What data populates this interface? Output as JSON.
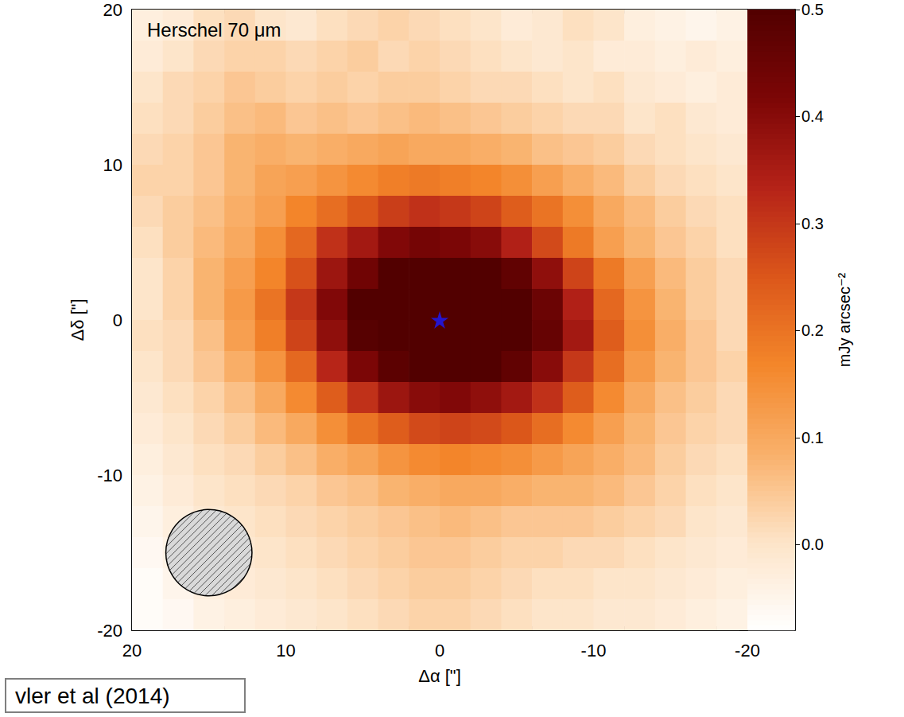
{
  "chart_data": {
    "type": "heatmap",
    "title": "Herschel 70 μm",
    "x_label": "Δα [\"]",
    "y_label": "Δδ [\"]",
    "x": [
      19,
      17,
      15,
      13,
      11,
      9,
      7,
      5,
      3,
      1,
      -1,
      -3,
      -5,
      -7,
      -9,
      -11,
      -13,
      -15,
      -17,
      -19
    ],
    "y": [
      19,
      17,
      15,
      13,
      11,
      9,
      7,
      5,
      3,
      1,
      -1,
      -3,
      -5,
      -7,
      -9,
      -11,
      -13,
      -15,
      -17,
      -19
    ],
    "cells": [
      [
        -0.03,
        -0.02,
        0.01,
        0.02,
        0.0,
        -0.01,
        0.01,
        0.02,
        0.03,
        0.02,
        0.01,
        0.0,
        -0.02,
        -0.01,
        0.01,
        0.0,
        -0.03,
        -0.04,
        -0.05,
        -0.04
      ],
      [
        -0.02,
        0.0,
        0.02,
        0.03,
        0.03,
        0.02,
        0.03,
        0.04,
        0.02,
        0.03,
        0.02,
        0.01,
        0.0,
        -0.01,
        0.0,
        -0.02,
        -0.02,
        -0.03,
        -0.02,
        -0.03
      ],
      [
        0.0,
        0.02,
        0.03,
        0.05,
        0.04,
        0.03,
        0.04,
        0.03,
        0.04,
        0.04,
        0.03,
        0.02,
        0.02,
        0.01,
        0.0,
        0.01,
        -0.01,
        -0.02,
        -0.03,
        -0.02
      ],
      [
        0.01,
        0.02,
        0.04,
        0.06,
        0.07,
        0.05,
        0.06,
        0.05,
        0.06,
        0.07,
        0.06,
        0.05,
        0.04,
        0.03,
        0.02,
        0.02,
        0.0,
        0.01,
        -0.01,
        -0.02
      ],
      [
        0.02,
        0.03,
        0.05,
        0.08,
        0.09,
        0.08,
        0.09,
        0.1,
        0.11,
        0.1,
        0.1,
        0.09,
        0.08,
        0.06,
        0.05,
        0.04,
        0.02,
        0.01,
        0.0,
        -0.01
      ],
      [
        0.03,
        0.03,
        0.05,
        0.08,
        0.11,
        0.12,
        0.14,
        0.16,
        0.18,
        0.19,
        0.18,
        0.17,
        0.15,
        0.12,
        0.09,
        0.07,
        0.04,
        0.02,
        0.01,
        0.0
      ],
      [
        0.02,
        0.04,
        0.06,
        0.09,
        0.12,
        0.17,
        0.21,
        0.25,
        0.29,
        0.31,
        0.3,
        0.28,
        0.24,
        0.2,
        0.15,
        0.1,
        0.07,
        0.04,
        0.02,
        0.01
      ],
      [
        0.01,
        0.04,
        0.07,
        0.1,
        0.15,
        0.22,
        0.31,
        0.36,
        0.41,
        0.43,
        0.42,
        0.4,
        0.34,
        0.27,
        0.19,
        0.12,
        0.08,
        0.05,
        0.03,
        0.01
      ],
      [
        0.0,
        0.03,
        0.08,
        0.12,
        0.17,
        0.26,
        0.37,
        0.44,
        0.5,
        0.53,
        0.54,
        0.52,
        0.47,
        0.39,
        0.28,
        0.19,
        0.12,
        0.07,
        0.04,
        0.02
      ],
      [
        0.0,
        0.03,
        0.08,
        0.13,
        0.2,
        0.3,
        0.41,
        0.5,
        0.56,
        0.59,
        0.6,
        0.58,
        0.53,
        0.45,
        0.34,
        0.22,
        0.14,
        0.08,
        0.04,
        0.02
      ],
      [
        0.01,
        0.02,
        0.06,
        0.12,
        0.18,
        0.28,
        0.39,
        0.49,
        0.55,
        0.58,
        0.59,
        0.58,
        0.54,
        0.46,
        0.36,
        0.24,
        0.15,
        0.09,
        0.05,
        0.02
      ],
      [
        0.0,
        0.02,
        0.05,
        0.09,
        0.14,
        0.22,
        0.33,
        0.42,
        0.48,
        0.51,
        0.52,
        0.5,
        0.47,
        0.4,
        0.3,
        0.21,
        0.13,
        0.08,
        0.05,
        0.03
      ],
      [
        -0.01,
        0.01,
        0.03,
        0.06,
        0.1,
        0.16,
        0.24,
        0.31,
        0.37,
        0.4,
        0.41,
        0.39,
        0.36,
        0.31,
        0.24,
        0.16,
        0.1,
        0.06,
        0.04,
        0.02
      ],
      [
        -0.02,
        0.0,
        0.02,
        0.04,
        0.07,
        0.1,
        0.15,
        0.2,
        0.24,
        0.27,
        0.28,
        0.27,
        0.25,
        0.21,
        0.16,
        0.12,
        0.08,
        0.05,
        0.03,
        0.02
      ],
      [
        -0.03,
        -0.01,
        0.01,
        0.02,
        0.04,
        0.06,
        0.09,
        0.11,
        0.14,
        0.16,
        0.17,
        0.16,
        0.15,
        0.13,
        0.11,
        0.09,
        0.07,
        0.04,
        0.02,
        0.01
      ],
      [
        -0.04,
        -0.02,
        0.0,
        0.01,
        0.02,
        0.03,
        0.05,
        0.06,
        0.08,
        0.09,
        0.1,
        0.1,
        0.09,
        0.08,
        0.08,
        0.07,
        0.05,
        0.03,
        0.01,
        0.0
      ],
      [
        -0.05,
        -0.03,
        -0.01,
        0.0,
        0.01,
        0.02,
        0.03,
        0.04,
        0.05,
        0.06,
        0.07,
        0.06,
        0.05,
        0.05,
        0.05,
        0.04,
        0.03,
        0.02,
        0.0,
        -0.01
      ],
      [
        -0.06,
        -0.04,
        -0.02,
        -0.01,
        0.0,
        0.01,
        0.02,
        0.03,
        0.04,
        0.05,
        0.05,
        0.04,
        0.03,
        0.03,
        0.02,
        0.02,
        0.01,
        0.0,
        -0.01,
        -0.02
      ],
      [
        -0.07,
        -0.05,
        -0.03,
        -0.02,
        -0.01,
        0.0,
        0.01,
        0.02,
        0.03,
        0.04,
        0.04,
        0.03,
        0.02,
        0.01,
        0.01,
        0.0,
        0.0,
        -0.01,
        -0.02,
        -0.03
      ],
      [
        -0.07,
        -0.06,
        -0.04,
        -0.03,
        -0.02,
        -0.01,
        0.0,
        0.01,
        0.02,
        0.03,
        0.03,
        0.02,
        0.01,
        0.0,
        0.0,
        -0.01,
        -0.01,
        -0.02,
        -0.03,
        -0.04
      ]
    ],
    "xlim": [
      20,
      -20
    ],
    "xticks": [
      20,
      10,
      0,
      -10,
      -20
    ],
    "ylim": [
      -20,
      20
    ],
    "yticks": [
      -20,
      -10,
      0,
      10,
      20
    ],
    "colorbar_label": "mJy arcsec⁻²",
    "colorbar_range": [
      -0.08,
      0.5
    ],
    "colorbar_ticks": [
      {
        "value": 0,
        "label": "0.0"
      },
      0.1,
      0.2,
      0.3,
      0.4,
      0.5
    ],
    "star": {
      "x": 0,
      "y": 0,
      "color": "#1a1aff",
      "marker": "star"
    },
    "beam": {
      "x": 15,
      "y": -15,
      "diameter": 5.6
    },
    "annotation": "vler et al (2014)"
  }
}
